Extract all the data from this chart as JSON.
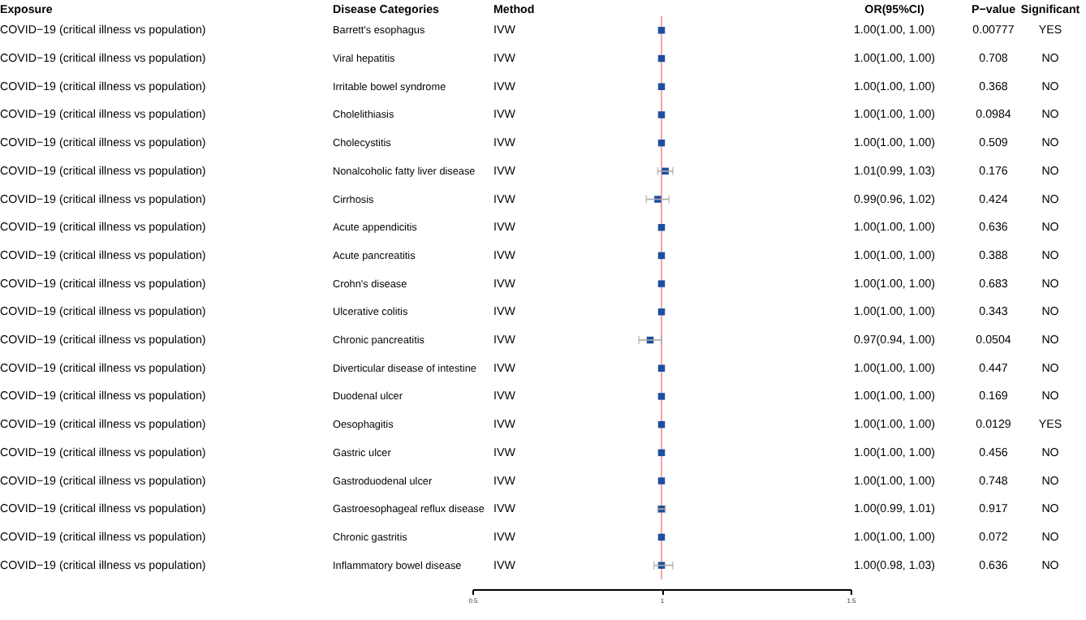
{
  "chart_data": {
    "type": "scatter",
    "orientation": "horizontal",
    "ylabel": "Disease Categories",
    "categories": [
      "Barrett's esophagus",
      "Viral hepatitis",
      "Irritable bowel syndrome",
      "Cholelithiasis",
      "Cholecystitis",
      "Nonalcoholic fatty liver disease",
      "Cirrhosis",
      "Acute appendicitis",
      "Acute pancreatitis",
      "Crohn's disease",
      "Ulcerative colitis",
      "Chronic pancreatitis",
      "Diverticular disease of intestine",
      "Duodenal ulcer",
      "Oesophagitis",
      "Gastric ulcer",
      "Gastroduodenal ulcer",
      "Gastroesophageal reflux disease",
      "Chronic gastritis",
      "Inflammatory bowel disease"
    ],
    "values": [
      1.0,
      1.0,
      1.0,
      1.0,
      1.0,
      1.01,
      0.99,
      1.0,
      1.0,
      1.0,
      1.0,
      0.97,
      1.0,
      1.0,
      1.0,
      1.0,
      1.0,
      1.0,
      1.0,
      1.0
    ],
    "errors": [
      null,
      null,
      null,
      null,
      null,
      [
        0.99,
        1.03
      ],
      [
        0.96,
        1.02
      ],
      null,
      null,
      null,
      null,
      [
        0.94,
        1.0
      ],
      null,
      null,
      null,
      null,
      null,
      [
        0.99,
        1.01
      ],
      null,
      [
        0.98,
        1.03
      ]
    ],
    "value_labels": [
      "1.00(1.00, 1.00)",
      "1.00(1.00, 1.00)",
      "1.00(1.00, 1.00)",
      "1.00(1.00, 1.00)",
      "1.00(1.00, 1.00)",
      "1.01(0.99, 1.03)",
      "0.99(0.96, 1.02)",
      "1.00(1.00, 1.00)",
      "1.00(1.00, 1.00)",
      "1.00(1.00, 1.00)",
      "1.00(1.00, 1.00)",
      "0.97(0.94, 1.00)",
      "1.00(1.00, 1.00)",
      "1.00(1.00, 1.00)",
      "1.00(1.00, 1.00)",
      "1.00(1.00, 1.00)",
      "1.00(1.00, 1.00)",
      "1.00(0.99, 1.01)",
      "1.00(1.00, 1.00)",
      "1.00(0.98, 1.03)"
    ],
    "color": "#1f4e9e",
    "marker": "square",
    "xlim": [
      0.5,
      1.5
    ],
    "xticks": [
      0.5,
      1,
      1.5
    ],
    "ref_lines": [
      {
        "axis": "x",
        "value": 1,
        "color": "#f4a6a6"
      }
    ],
    "annotations": [
      "Exposure",
      "Method",
      "OR(95%CI)",
      "P−value",
      "Significant",
      "COVID−19 (critical illness vs population)",
      "IVW",
      "0.00777",
      "YES",
      "COVID−19 (critical illness vs population)",
      "IVW",
      "0.708",
      "NO",
      "COVID−19 (critical illness vs population)",
      "IVW",
      "0.368",
      "NO",
      "COVID−19 (critical illness vs population)",
      "IVW",
      "0.0984",
      "NO",
      "COVID−19 (critical illness vs population)",
      "IVW",
      "0.509",
      "NO",
      "COVID−19 (critical illness vs population)",
      "IVW",
      "0.176",
      "NO",
      "COVID−19 (critical illness vs population)",
      "IVW",
      "0.424",
      "NO",
      "COVID−19 (critical illness vs population)",
      "IVW",
      "0.636",
      "NO",
      "COVID−19 (critical illness vs population)",
      "IVW",
      "0.388",
      "NO",
      "COVID−19 (critical illness vs population)",
      "IVW",
      "0.683",
      "NO",
      "COVID−19 (critical illness vs population)",
      "IVW",
      "0.343",
      "NO",
      "COVID−19 (critical illness vs population)",
      "IVW",
      "0.0504",
      "NO",
      "COVID−19 (critical illness vs population)",
      "IVW",
      "0.447",
      "NO",
      "COVID−19 (critical illness vs population)",
      "IVW",
      "0.169",
      "NO",
      "COVID−19 (critical illness vs population)",
      "IVW",
      "0.0129",
      "YES",
      "COVID−19 (critical illness vs population)",
      "IVW",
      "0.456",
      "NO",
      "COVID−19 (critical illness vs population)",
      "IVW",
      "0.748",
      "NO",
      "COVID−19 (critical illness vs population)",
      "IVW",
      "0.917",
      "NO",
      "COVID−19 (critical illness vs population)",
      "IVW",
      "0.072",
      "NO",
      "COVID−19 (critical illness vs population)",
      "IVW",
      "0.636",
      "NO"
    ]
  }
}
